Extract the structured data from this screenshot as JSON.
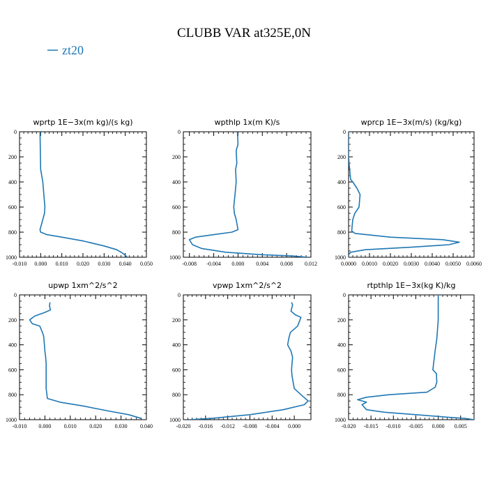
{
  "page": {
    "title": "CLUBB VAR at325E,0N",
    "legend": {
      "label": "zt20",
      "color": "#1f77b4"
    }
  },
  "chart_data": [
    {
      "type": "line",
      "title": "wprtp   1E−3x(m kg)/(s kg)",
      "xlim": [
        -0.01,
        0.05
      ],
      "ylim": [
        1000,
        0
      ],
      "xticks": [
        -0.01,
        0.0,
        0.01,
        0.02,
        0.03,
        0.04,
        0.05
      ],
      "xtick_labels": [
        "-0.010",
        "0.000",
        "0.010",
        "0.020",
        "0.030",
        "0.040",
        "0.050"
      ],
      "yticks": [
        0,
        200,
        400,
        600,
        800,
        1000
      ],
      "ytick_labels": [
        "0",
        "200",
        "400",
        "600",
        "800",
        "1000"
      ],
      "series": [
        {
          "name": "zt20",
          "color": "#1f77b4",
          "x": [
            -0.0003,
            -0.0002,
            0.0,
            0.001,
            0.0015,
            0.002,
            0.0018,
            0.001,
            -0.0003,
            0.0,
            0.003,
            0.01,
            0.02,
            0.03,
            0.036,
            0.039,
            0.041
          ],
          "y": [
            0,
            100,
            300,
            400,
            500,
            600,
            650,
            700,
            780,
            800,
            820,
            840,
            870,
            910,
            940,
            970,
            1000
          ]
        }
      ]
    },
    {
      "type": "line",
      "title": "wpthlp   1x(m K)/s",
      "xlim": [
        -0.009,
        0.012
      ],
      "ylim": [
        1000,
        0
      ],
      "xticks": [
        -0.008,
        -0.004,
        0.0,
        0.004,
        0.008,
        0.012
      ],
      "xtick_labels": [
        "-0.008",
        "-0.004",
        "0.000",
        "0.004",
        "0.008",
        "0.012"
      ],
      "yticks": [
        0,
        200,
        400,
        600,
        800,
        1000
      ],
      "ytick_labels": [
        "0",
        "200",
        "400",
        "600",
        "800",
        "1000"
      ],
      "series": [
        {
          "name": "zt20",
          "color": "#1f77b4",
          "x": [
            -0.0001,
            0.0,
            -0.0003,
            -0.0002,
            -0.0004,
            -0.0003,
            -0.0005,
            -0.0007,
            -0.0006,
            -0.0003,
            0.0,
            -0.001,
            -0.004,
            -0.007,
            -0.008,
            -0.0075,
            -0.006,
            -0.002,
            0.004,
            0.009,
            0.0115
          ],
          "y": [
            0,
            100,
            150,
            250,
            300,
            400,
            500,
            600,
            650,
            700,
            780,
            800,
            820,
            840,
            860,
            900,
            930,
            960,
            980,
            990,
            1000
          ]
        }
      ]
    },
    {
      "type": "line",
      "title": "wprcp   1E−3x(m/s) (kg/kg)",
      "xlim": [
        0.0,
        0.006
      ],
      "ylim": [
        1000,
        0
      ],
      "xticks": [
        0.0,
        0.001,
        0.002,
        0.003,
        0.004,
        0.005,
        0.006
      ],
      "xtick_labels": [
        "0.0000",
        "0.0010",
        "0.0020",
        "0.0030",
        "0.0040",
        "0.0050",
        "0.0060"
      ],
      "yticks": [
        0,
        200,
        400,
        600,
        800,
        1000
      ],
      "ytick_labels": [
        "0",
        "200",
        "400",
        "600",
        "800",
        "1000"
      ],
      "series": [
        {
          "name": "zt20",
          "color": "#1f77b4",
          "x": [
            0.0,
            0.0,
            5e-05,
            0.0001,
            0.0002,
            0.0004,
            0.00055,
            0.0005,
            0.0003,
            0.0002,
            0.00015,
            0.0003,
            0.002,
            0.0045,
            0.0053,
            0.0048,
            0.003,
            0.0008,
            0.0001,
            0.0,
            0.0
          ],
          "y": [
            0,
            200,
            300,
            380,
            400,
            450,
            500,
            600,
            650,
            700,
            790,
            810,
            840,
            860,
            880,
            900,
            920,
            940,
            960,
            980,
            1000
          ]
        }
      ]
    },
    {
      "type": "line",
      "title": "upwp   1xm^2/s^2",
      "xlim": [
        -0.01,
        0.04
      ],
      "ylim": [
        1000,
        0
      ],
      "xticks": [
        -0.01,
        0.0,
        0.01,
        0.02,
        0.03,
        0.04
      ],
      "xtick_labels": [
        "-0.010",
        "0.000",
        "0.010",
        "0.020",
        "0.030",
        "0.040"
      ],
      "yticks": [
        0,
        200,
        400,
        600,
        800,
        1000
      ],
      "ytick_labels": [
        "0",
        "200",
        "400",
        "600",
        "800",
        "1000"
      ],
      "series": [
        {
          "name": "zt20",
          "color": "#1f77b4",
          "x": [
            0.002,
            0.0018,
            0.0022,
            0.0,
            -0.004,
            -0.006,
            -0.005,
            -0.002,
            -0.001,
            -0.0005,
            -0.0002,
            0.0,
            0.0003,
            0.0005,
            0.0005,
            0.0005,
            0.001,
            0.006,
            0.015,
            0.025,
            0.033,
            0.038
          ],
          "y": [
            60,
            90,
            120,
            140,
            170,
            200,
            230,
            250,
            300,
            330,
            400,
            450,
            500,
            550,
            600,
            750,
            830,
            860,
            890,
            930,
            960,
            990
          ]
        }
      ]
    },
    {
      "type": "line",
      "title": "vpwp   1xm^2/s^2",
      "xlim": [
        -0.02,
        0.003
      ],
      "ylim": [
        1000,
        0
      ],
      "xticks": [
        -0.02,
        -0.016,
        -0.012,
        -0.008,
        -0.004,
        0.0
      ],
      "xtick_labels": [
        "-0.020",
        "-0.016",
        "-0.012",
        "-0.008",
        "-0.004",
        "0.000"
      ],
      "yticks": [
        0,
        200,
        400,
        600,
        800,
        1000
      ],
      "ytick_labels": [
        "0",
        "200",
        "400",
        "600",
        "800",
        "1000"
      ],
      "series": [
        {
          "name": "zt20",
          "color": "#1f77b4",
          "x": [
            -0.0005,
            -0.0003,
            -0.0006,
            0.0002,
            0.0012,
            0.0006,
            -0.0007,
            -0.001,
            -0.0012,
            -0.0006,
            -0.0003,
            -0.0004,
            -0.0005,
            -0.0004,
            0.0,
            0.0012,
            0.0025,
            0.0018,
            -0.002,
            -0.008,
            -0.015,
            -0.019
          ],
          "y": [
            60,
            80,
            130,
            160,
            180,
            250,
            300,
            350,
            400,
            450,
            500,
            550,
            600,
            650,
            750,
            800,
            850,
            880,
            920,
            960,
            990,
            1000
          ]
        }
      ]
    },
    {
      "type": "line",
      "title": "rtpthlp   1E−3x(kg K)/kg",
      "xlim": [
        -0.02,
        0.008
      ],
      "ylim": [
        1000,
        0
      ],
      "xticks": [
        -0.02,
        -0.015,
        -0.01,
        -0.005,
        0.0,
        0.005
      ],
      "xtick_labels": [
        "-0.020",
        "-0.015",
        "-0.010",
        "-0.005",
        "0.000",
        "0.005"
      ],
      "yticks": [
        0,
        200,
        400,
        600,
        800,
        1000
      ],
      "ytick_labels": [
        "0",
        "200",
        "400",
        "600",
        "800",
        "1000"
      ],
      "series": [
        {
          "name": "zt20",
          "color": "#1f77b4",
          "x": [
            0.0,
            0.0,
            -0.0003,
            -0.0007,
            -0.0012,
            -0.0004,
            -0.0003,
            -0.0007,
            -0.0025,
            -0.011,
            -0.016,
            -0.018,
            -0.016,
            -0.017,
            -0.016,
            -0.012,
            -0.005,
            0.002,
            0.006,
            0.008
          ],
          "y": [
            0,
            200,
            350,
            450,
            600,
            630,
            700,
            740,
            780,
            800,
            820,
            840,
            860,
            880,
            920,
            940,
            960,
            980,
            990,
            1000
          ]
        }
      ]
    }
  ]
}
